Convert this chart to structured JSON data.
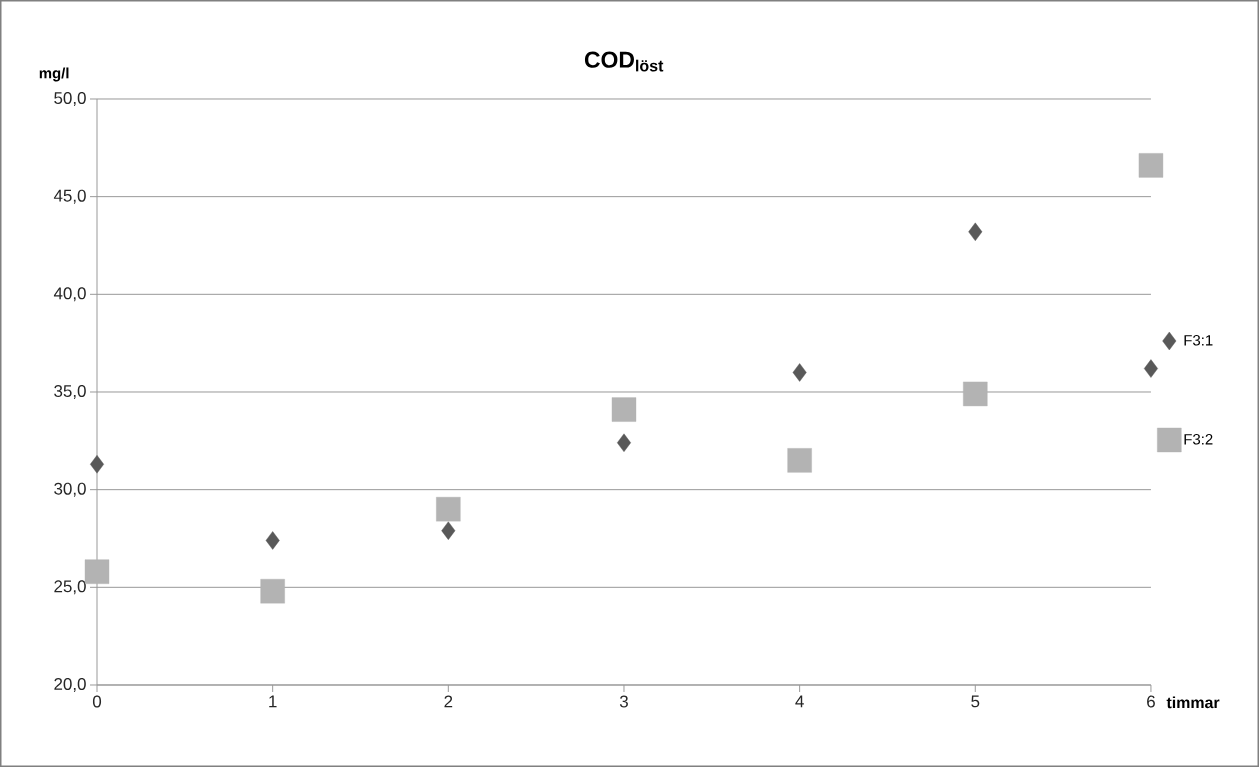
{
  "chart_data": {
    "type": "scatter",
    "title": "COD$_{löst}$",
    "ylabel": "mg/l",
    "xlabel": "timmar",
    "x": [
      0,
      1,
      2,
      3,
      4,
      5,
      6
    ],
    "series": [
      {
        "name": "F3:1",
        "color": "#595959",
        "marker": "diamond",
        "values": [
          31.3,
          27.4,
          27.9,
          32.4,
          36.0,
          43.2,
          36.2
        ]
      },
      {
        "name": "F3:2",
        "color": "#b3b3b3",
        "marker": "square",
        "values": [
          25.8,
          24.8,
          29.0,
          34.1,
          31.5,
          34.9,
          46.6
        ]
      }
    ],
    "xlim": [
      0,
      6
    ],
    "xticks": [
      0,
      1,
      2,
      3,
      4,
      5,
      6
    ],
    "ylim": [
      20,
      50
    ],
    "yticks": [
      {
        "value": 20,
        "label": "20,0"
      },
      {
        "value": 25,
        "label": "25,0"
      },
      {
        "value": 30,
        "label": "30,0"
      },
      {
        "value": 35,
        "label": "35,0"
      },
      {
        "value": 40,
        "label": "40,0"
      },
      {
        "value": 45,
        "label": "45,0"
      },
      {
        "value": 50,
        "label": "50,0"
      }
    ],
    "grid": "y",
    "legend": "right"
  }
}
